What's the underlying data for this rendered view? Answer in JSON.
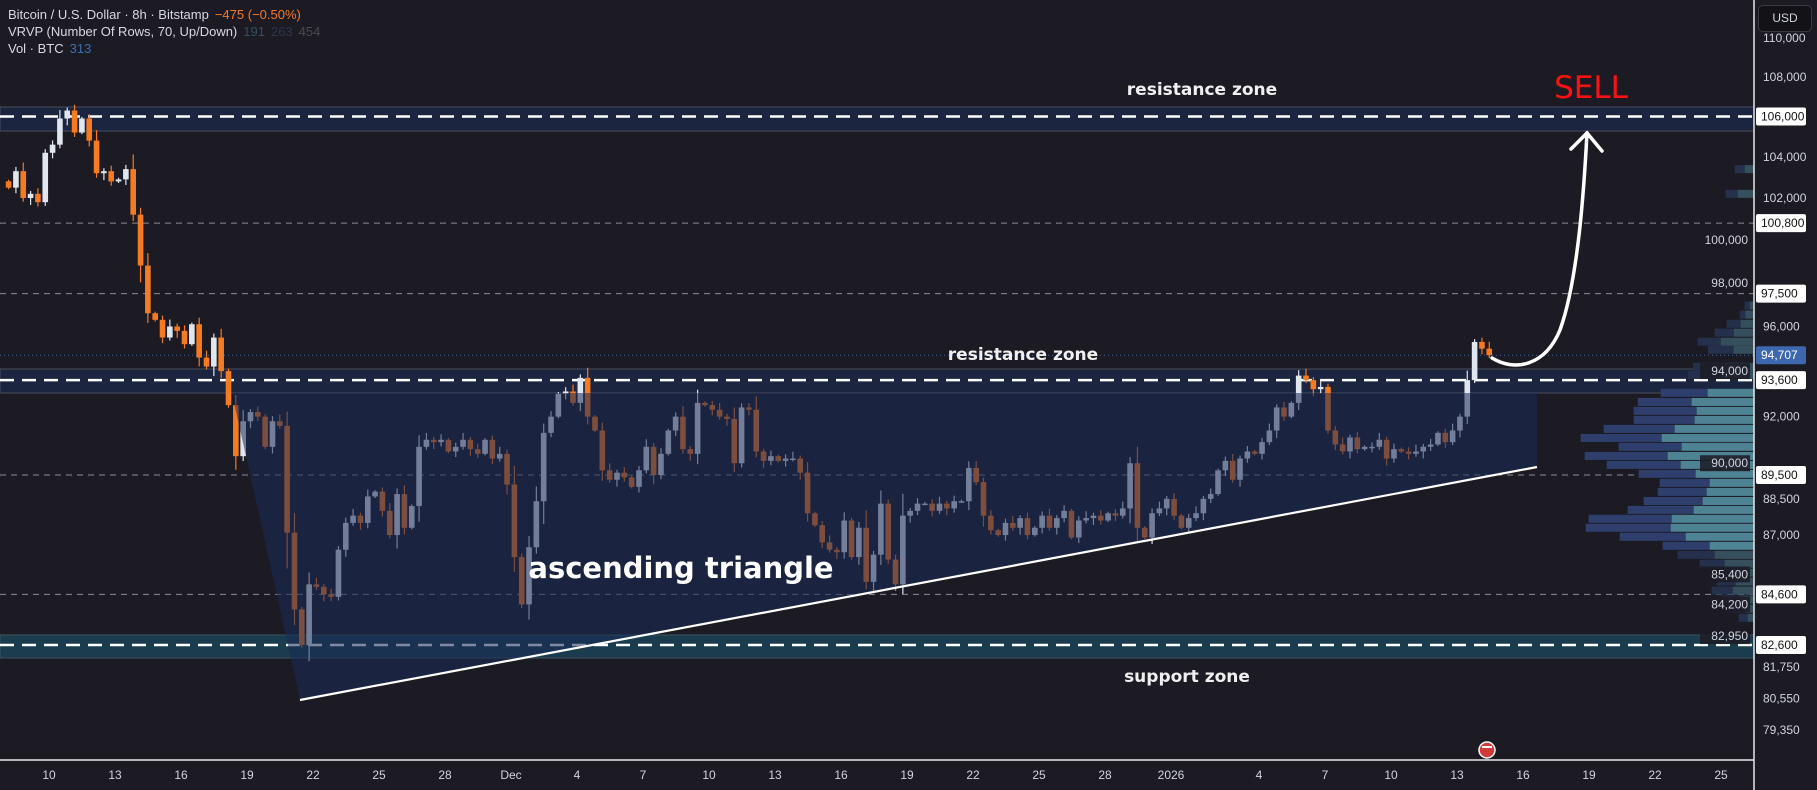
{
  "legend": {
    "symbol": "Bitcoin / U.S. Dollar · 8h · Bitstamp",
    "change": "−475 (−0.50%)",
    "vrvp": "VRVP (Number Of Rows, 70, Up/Down)",
    "vrvp_v1": "191",
    "vrvp_v2": "263",
    "vrvp_v3": "454",
    "vol": "Vol · BTC",
    "vol_value": "313"
  },
  "currency_button": "USD",
  "annotations": {
    "resistance_top": "resistance zone",
    "resistance_mid": "resistance zone",
    "support": "support zone",
    "pattern": "ascending triangle",
    "signal": "SELL"
  },
  "colors": {
    "background": "#1c1b24",
    "bull": "#dfe6ee",
    "bear": "#f57a20",
    "sell": "#ff1010",
    "resistance_zone": "#1b2540",
    "support_zone": "#1a3c4e",
    "triangle_fill": "#1a2a55",
    "current_price": "#3d68b0",
    "vrvp_up": "#4e8394",
    "vrvp_down": "#2e3f6e"
  },
  "chart_data": {
    "type": "candlestick",
    "timeframe": "8h",
    "scale": "log",
    "ylim": [
      79000,
      110500
    ],
    "price_ticks": [
      "110,000",
      "108,000",
      "104,000",
      "102,000",
      "100,000",
      "98,000",
      "96,000",
      "94,000",
      "92,000",
      "90,000",
      "88,500",
      "87,000",
      "85,400",
      "84,200",
      "82,950",
      "81,750",
      "80,550",
      "79,350"
    ],
    "price_tick_values": [
      110000,
      108000,
      104000,
      102000,
      100000,
      98000,
      96000,
      94000,
      92000,
      90000,
      88500,
      87000,
      85400,
      84200,
      82950,
      81750,
      80550,
      79350
    ],
    "marked_levels": [
      {
        "value": 106000,
        "label": "106,000",
        "style": "zone"
      },
      {
        "value": 100800,
        "label": "100,800",
        "style": "dashed"
      },
      {
        "value": 97500,
        "label": "97,500",
        "style": "dashed"
      },
      {
        "value": 94707,
        "label": "94,707",
        "style": "current"
      },
      {
        "value": 93600,
        "label": "93,600",
        "style": "zone"
      },
      {
        "value": 89500,
        "label": "89,500",
        "style": "dashed"
      },
      {
        "value": 84600,
        "label": "84,600",
        "style": "dashed"
      },
      {
        "value": 82600,
        "label": "82,600",
        "style": "support"
      }
    ],
    "time_ticks": [
      "10",
      "13",
      "16",
      "19",
      "22",
      "25",
      "28",
      "Dec",
      "4",
      "7",
      "10",
      "13",
      "16",
      "19",
      "22",
      "25",
      "28",
      "2026",
      "4",
      "7",
      "10",
      "13",
      "16",
      "19",
      "22",
      "25"
    ],
    "closes": [
      102500,
      103300,
      102000,
      102200,
      101800,
      104200,
      104600,
      105900,
      106300,
      105200,
      105900,
      104800,
      103200,
      103300,
      102800,
      102900,
      103400,
      101200,
      98800,
      96600,
      96300,
      95500,
      96000,
      95800,
      95200,
      96100,
      94600,
      94200,
      95500,
      94000,
      92500,
      90300,
      91800,
      92200,
      92000,
      90700,
      91800,
      91600,
      87100,
      84000,
      82600,
      85000,
      84900,
      84600,
      84500,
      86400,
      87500,
      87800,
      87500,
      88600,
      88800,
      88000,
      87000,
      88700,
      87300,
      88200,
      90700,
      91000,
      90900,
      91000,
      90500,
      90700,
      91000,
      90600,
      90400,
      91000,
      90200,
      90400,
      89100,
      86100,
      84200,
      86500,
      88400,
      91300,
      92000,
      93000,
      93100,
      92600,
      93700,
      92000,
      91400,
      89700,
      89300,
      89600,
      89400,
      89000,
      89700,
      90700,
      89500,
      90400,
      91400,
      92000,
      90600,
      90400,
      92600,
      92500,
      92300,
      92000,
      91900,
      90000,
      92400,
      92300,
      90500,
      90100,
      90300,
      90100,
      90200,
      90200,
      89600,
      87900,
      87400,
      86700,
      86400,
      86300,
      87600,
      86100,
      87300,
      85100,
      86200,
      88300,
      86000,
      85000,
      87800,
      88000,
      88300,
      88300,
      88000,
      88300,
      88100,
      88400,
      88400,
      89800,
      89200,
      87800,
      87200,
      87000,
      87500,
      87300,
      87700,
      87000,
      87300,
      87800,
      87300,
      87700,
      88000,
      86900,
      87600,
      87700,
      87800,
      87600,
      87900,
      87800,
      88100,
      90000,
      87300,
      86900,
      87900,
      88100,
      88500,
      87800,
      87300,
      87700,
      87900,
      88500,
      88700,
      89700,
      90100,
      89300,
      90200,
      90500,
      90400,
      90900,
      91400,
      92400,
      92000,
      92600,
      93800,
      93600,
      93200,
      93300,
      91400,
      90800,
      90500,
      91100,
      90600,
      90700,
      90700,
      91000,
      90200,
      90600,
      90500,
      90400,
      90500,
      90700,
      90800,
      91300,
      90900,
      91400,
      92000,
      93600,
      95300,
      95000,
      94707
    ],
    "vrvp_rows": [
      {
        "price": 103400,
        "total": 58,
        "up": 28
      },
      {
        "price": 102200,
        "total": 85,
        "up": 49
      },
      {
        "price": 96950,
        "total": 28,
        "up": 13
      },
      {
        "price": 96540,
        "total": 43,
        "up": 26
      },
      {
        "price": 96120,
        "total": 82,
        "up": 40
      },
      {
        "price": 95720,
        "total": 118,
        "up": 61
      },
      {
        "price": 95310,
        "total": 169,
        "up": 100
      },
      {
        "price": 94950,
        "total": 138,
        "up": 61
      },
      {
        "price": 94190,
        "total": 183,
        "up": 91
      },
      {
        "price": 93830,
        "total": 198,
        "up": 100
      },
      {
        "price": 93040,
        "total": 280,
        "up": 139
      },
      {
        "price": 92640,
        "total": 349,
        "up": 187
      },
      {
        "price": 92250,
        "total": 361,
        "up": 172
      },
      {
        "price": 91860,
        "total": 361,
        "up": 178
      },
      {
        "price": 91470,
        "total": 451,
        "up": 238
      },
      {
        "price": 91080,
        "total": 520,
        "up": 277
      },
      {
        "price": 90700,
        "total": 406,
        "up": 217
      },
      {
        "price": 90310,
        "total": 508,
        "up": 259
      },
      {
        "price": 89930,
        "total": 442,
        "up": 220
      },
      {
        "price": 89550,
        "total": 346,
        "up": 175
      },
      {
        "price": 89170,
        "total": 283,
        "up": 133
      },
      {
        "price": 88790,
        "total": 289,
        "up": 142
      },
      {
        "price": 88410,
        "total": 331,
        "up": 154
      },
      {
        "price": 88040,
        "total": 379,
        "up": 181
      },
      {
        "price": 87670,
        "total": 496,
        "up": 247
      },
      {
        "price": 87300,
        "total": 505,
        "up": 250
      },
      {
        "price": 86930,
        "total": 403,
        "up": 205
      },
      {
        "price": 86560,
        "total": 274,
        "up": 133
      },
      {
        "price": 86190,
        "total": 229,
        "up": 118
      },
      {
        "price": 85830,
        "total": 163,
        "up": 88
      },
      {
        "price": 85470,
        "total": 106,
        "up": 61
      },
      {
        "price": 85110,
        "total": 112,
        "up": 55
      },
      {
        "price": 84750,
        "total": 127,
        "up": 64
      },
      {
        "price": 84390,
        "total": 100,
        "up": 43
      },
      {
        "price": 84030,
        "total": 76,
        "up": 28
      },
      {
        "price": 83670,
        "total": 46,
        "up": 19
      }
    ]
  }
}
